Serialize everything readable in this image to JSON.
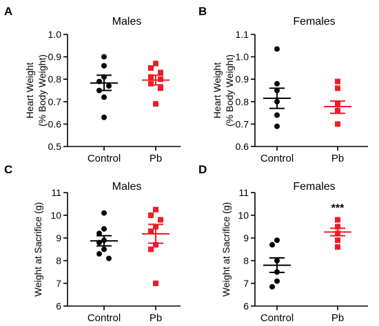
{
  "colors": {
    "control": "#000000",
    "pb": "#ee1c25"
  },
  "chart_data": [
    {
      "type": "scatter",
      "panel_letter": "A",
      "title": "Males",
      "ylabel_line1": "Heart  Weight",
      "ylabel_line2": "(% Body Weight)",
      "ylim": [
        0.5,
        1.0
      ],
      "yticks": [
        0.5,
        0.6,
        0.7,
        0.8,
        0.9,
        1.0
      ],
      "tick_decimals": 1,
      "categories": [
        "Control",
        "Pb"
      ],
      "groups": [
        {
          "category": "Control",
          "marker": "circle",
          "color": "#000000",
          "values": [
            0.9,
            0.86,
            0.81,
            0.79,
            0.77,
            0.75,
            0.72,
            0.63
          ],
          "mean": 0.783,
          "sem_low": 0.75,
          "sem_high": 0.818
        },
        {
          "category": "Pb",
          "marker": "square",
          "color": "#ee1c25",
          "values": [
            0.87,
            0.85,
            0.83,
            0.81,
            0.8,
            0.78,
            0.76,
            0.69
          ],
          "mean": 0.796,
          "sem_low": 0.775,
          "sem_high": 0.818
        }
      ],
      "annotation": ""
    },
    {
      "type": "scatter",
      "panel_letter": "B",
      "title": "Females",
      "ylabel_line1": "Heart  Weight",
      "ylabel_line2": "(% Body Weight)",
      "ylim": [
        0.6,
        1.1
      ],
      "yticks": [
        0.6,
        0.7,
        0.8,
        0.9,
        1.0,
        1.1
      ],
      "tick_decimals": 1,
      "categories": [
        "Control",
        "Pb"
      ],
      "groups": [
        {
          "category": "Control",
          "marker": "circle",
          "color": "#000000",
          "values": [
            1.035,
            0.88,
            0.85,
            0.8,
            0.74,
            0.69
          ],
          "mean": 0.815,
          "sem_low": 0.77,
          "sem_high": 0.86
        },
        {
          "category": "Pb",
          "marker": "square",
          "color": "#ee1c25",
          "values": [
            0.89,
            0.86,
            0.79,
            0.76,
            0.7
          ],
          "mean": 0.778,
          "sem_low": 0.748,
          "sem_high": 0.803
        }
      ],
      "annotation": ""
    },
    {
      "type": "scatter",
      "panel_letter": "C",
      "title": "Males",
      "ylabel_line1": "Weight at Sacrifice (g)",
      "ylabel_line2": "",
      "ylim": [
        6,
        11
      ],
      "yticks": [
        6,
        7,
        8,
        9,
        10,
        11
      ],
      "tick_decimals": 0,
      "categories": [
        "Control",
        "Pb"
      ],
      "groups": [
        {
          "category": "Control",
          "marker": "circle",
          "color": "#000000",
          "values": [
            10.1,
            9.4,
            9.2,
            8.9,
            8.8,
            8.5,
            8.3,
            8.1
          ],
          "mean": 8.87,
          "sem_low": 8.65,
          "sem_high": 9.1
        },
        {
          "category": "Pb",
          "marker": "square",
          "color": "#ee1c25",
          "values": [
            10.25,
            10.0,
            9.8,
            9.5,
            9.3,
            8.7,
            8.5,
            7.0
          ],
          "mean": 9.18,
          "sem_low": 8.77,
          "sem_high": 9.6
        }
      ],
      "annotation": ""
    },
    {
      "type": "scatter",
      "panel_letter": "D",
      "title": "Females",
      "ylabel_line1": "Weight at Sacrifice (g)",
      "ylabel_line2": "",
      "ylim": [
        6,
        11
      ],
      "yticks": [
        6,
        7,
        8,
        9,
        10,
        11
      ],
      "tick_decimals": 0,
      "categories": [
        "Control",
        "Pb"
      ],
      "groups": [
        {
          "category": "Control",
          "marker": "circle",
          "color": "#000000",
          "values": [
            8.9,
            8.7,
            8.0,
            7.5,
            7.1,
            6.85
          ],
          "mean": 7.8,
          "sem_low": 7.48,
          "sem_high": 8.12
        },
        {
          "category": "Pb",
          "marker": "square",
          "color": "#ee1c25",
          "values": [
            9.8,
            9.5,
            9.2,
            8.9,
            8.6
          ],
          "mean": 9.26,
          "sem_low": 9.1,
          "sem_high": 9.43
        }
      ],
      "annotation": "***"
    }
  ]
}
